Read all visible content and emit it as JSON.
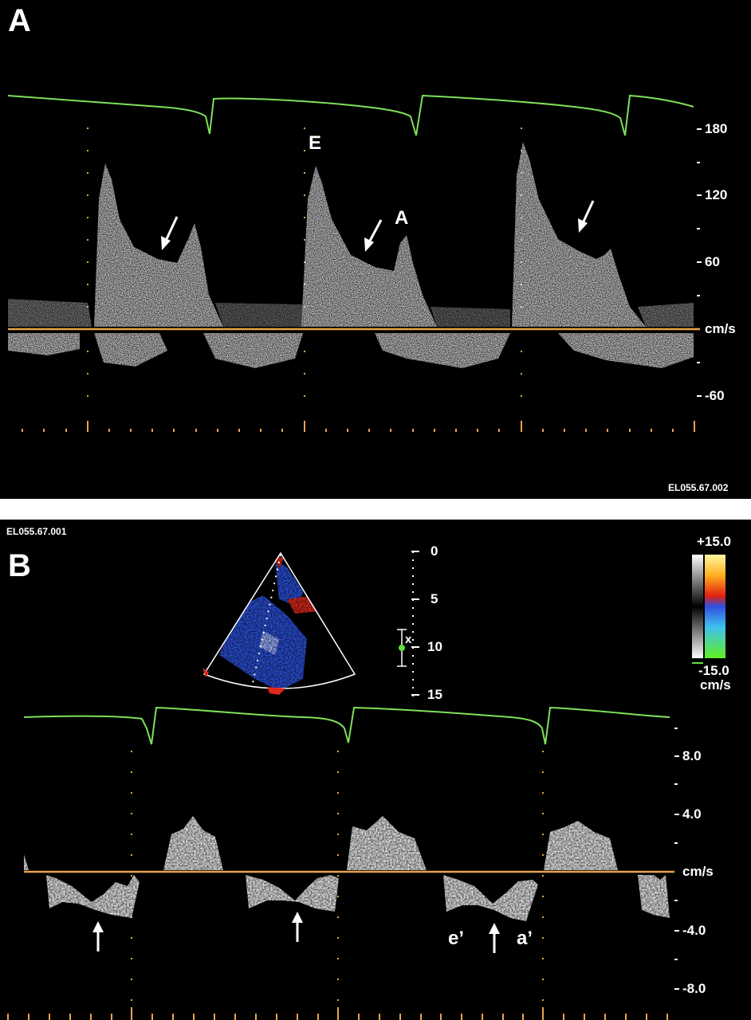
{
  "panel_a": {
    "label": "A",
    "y_ticks": [
      "180",
      "120",
      "60",
      "cm/s",
      "-60"
    ],
    "peak_labels": {
      "e": "E",
      "a": "A"
    },
    "figure_code": "EL055.67.002",
    "colors": {
      "ecg": "#7fe05a",
      "baseline": "#e8a44a",
      "markers": "#e8a44a",
      "spectrum": "#e8e8e8"
    }
  },
  "panel_b": {
    "label": "B",
    "figure_code": "EL055.67.001",
    "y_ticks": [
      "8.0",
      "4.0",
      "cm/s",
      "-4.0",
      "-8.0"
    ],
    "depth_scale": [
      "0",
      "5",
      "10",
      "15"
    ],
    "sample_marker": "x",
    "color_bar": {
      "max": "+15.0",
      "min": "-15.0",
      "unit": "cm/s"
    },
    "peak_labels": {
      "e": "e’",
      "a": "a’"
    },
    "colors": {
      "ecg": "#7fe05a",
      "baseline": "#e8a44a",
      "sector_blue": "#2a4fd8",
      "sector_red": "#e0281c"
    }
  }
}
